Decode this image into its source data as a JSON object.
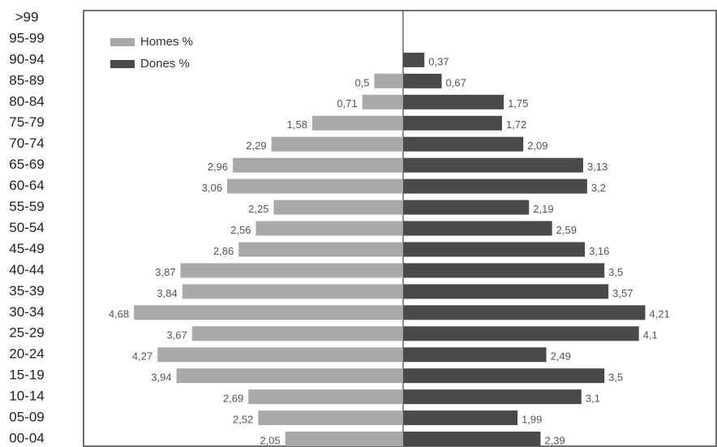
{
  "chart_data": {
    "type": "pyramid",
    "categories": [
      ">99",
      "95-99",
      "90-94",
      "85-89",
      "80-84",
      "75-79",
      "70-74",
      "65-69",
      "60-64",
      "55-59",
      "50-54",
      "45-49",
      "40-44",
      "35-39",
      "30-34",
      "25-29",
      "20-24",
      "15-19",
      "10-14",
      "05-09",
      "00-04"
    ],
    "series": [
      {
        "name": "Homes %",
        "color": "#a9a9a9",
        "side": "left",
        "values": [
          null,
          null,
          null,
          0.5,
          0.71,
          1.58,
          2.29,
          2.96,
          3.06,
          2.25,
          2.56,
          2.86,
          3.87,
          3.84,
          4.68,
          3.67,
          4.27,
          3.94,
          2.69,
          2.52,
          2.05
        ],
        "value_labels": [
          null,
          null,
          null,
          "0,5",
          "0,71",
          "1,58",
          "2,29",
          "2,96",
          "3,06",
          "2,25",
          "2,56",
          "2,86",
          "3,87",
          "3,84",
          "4,68",
          "3,67",
          "4,27",
          "3,94",
          "2,69",
          "2,52",
          "2,05"
        ]
      },
      {
        "name": "Dones %",
        "color": "#4a4a4a",
        "side": "right",
        "values": [
          null,
          null,
          0.37,
          0.67,
          1.75,
          1.72,
          2.09,
          3.13,
          3.2,
          2.19,
          2.59,
          3.16,
          3.5,
          3.57,
          4.21,
          4.1,
          2.49,
          3.5,
          3.1,
          1.99,
          2.39
        ],
        "value_labels": [
          null,
          null,
          "0,37",
          "0,67",
          "1,75",
          "1,72",
          "2,09",
          "3,13",
          "3,2",
          "2,19",
          "2,59",
          "3,16",
          "3,5",
          "3,57",
          "4,21",
          "4,1",
          "2,49",
          "3,5",
          "3,1",
          "1,99",
          "2,39"
        ]
      }
    ],
    "xlim": [
      -5.5,
      5.5
    ]
  }
}
